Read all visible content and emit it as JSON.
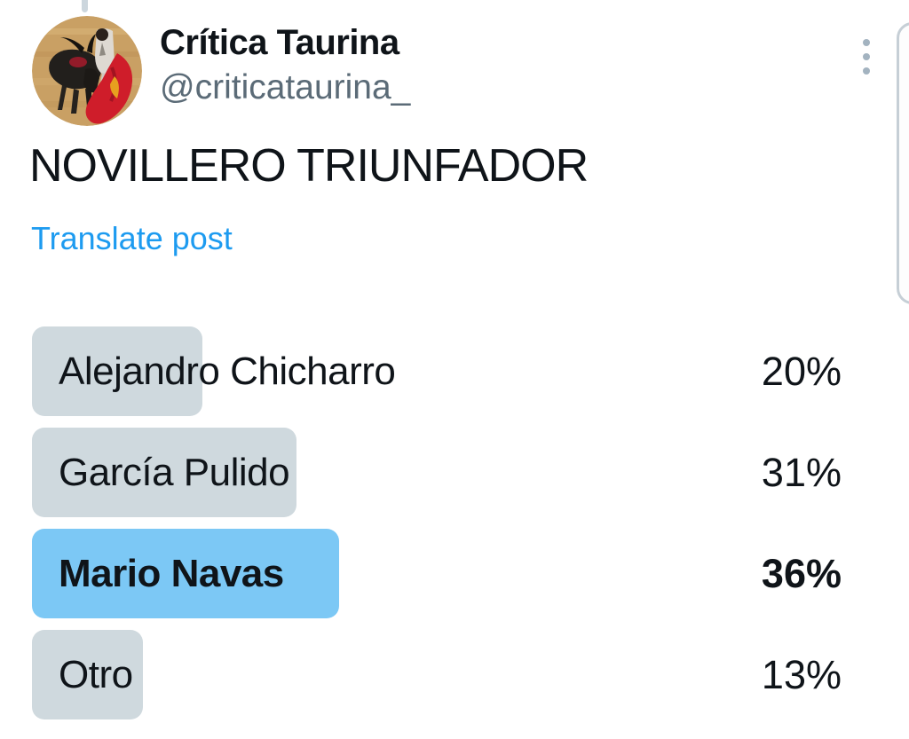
{
  "header": {
    "author_name": "Crítica Taurina",
    "author_handle": "@criticataurina_",
    "avatar_description": "bullfighting scene: black bull, matador in white, red cape on sand arena",
    "more_icon": "kebab-menu-icon"
  },
  "post": {
    "text": "NOVILLERO TRIUNFADOR",
    "translate_label": "Translate post"
  },
  "poll": {
    "options": [
      {
        "label": "Alejandro Chicharro",
        "percent_label": "20%",
        "percent": 20,
        "leading": false
      },
      {
        "label": "García Pulido",
        "percent_label": "31%",
        "percent": 31,
        "leading": false
      },
      {
        "label": "Mario Navas",
        "percent_label": "36%",
        "percent": 36,
        "leading": true
      },
      {
        "label": "Otro",
        "percent_label": "13%",
        "percent": 13,
        "leading": false
      }
    ]
  },
  "colors": {
    "text_primary": "#0f1419",
    "text_secondary": "#5b6b77",
    "link_blue": "#1d9bf0",
    "poll_bar_gray": "#cfd9de",
    "poll_bar_leading_blue": "#7cc8f5",
    "muted_ui_gray": "#a3b3c0",
    "card_border_gray": "#c6cfd6"
  }
}
